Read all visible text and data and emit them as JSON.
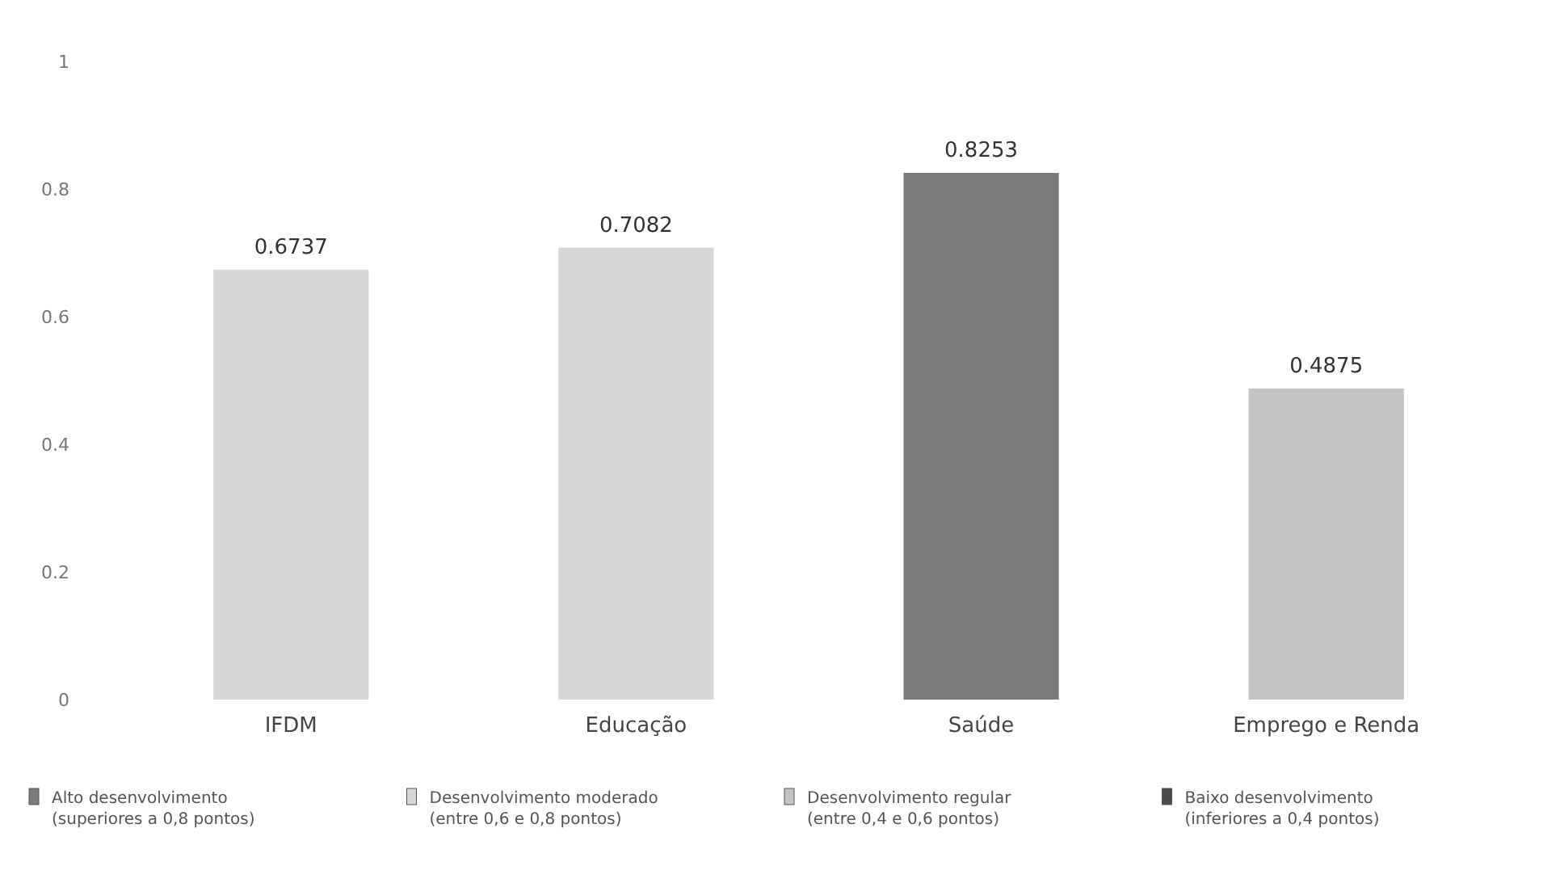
{
  "chart_data": {
    "type": "bar",
    "categories": [
      "IFDM",
      "Educação",
      "Saúde",
      "Emprego e Renda"
    ],
    "series": [
      {
        "name": "Alto desenvolvimento (superiores a 0,8 pontos)",
        "color": "#7a7a7a",
        "values": [
          null,
          null,
          0.8253,
          null
        ]
      },
      {
        "name": "Desenvolvimento moderado (entre 0,6 e 0,8 pontos)",
        "color": "#d6d6d6",
        "values": [
          0.6737,
          0.7082,
          null,
          null
        ]
      },
      {
        "name": "Desenvolvimento regular (entre 0,4 e 0,6 pontos)",
        "color": "#c4c4c4",
        "values": [
          null,
          null,
          null,
          0.4875
        ]
      },
      {
        "name": "Baixo desenvolvimento (inferiores a 0,4 pontos)",
        "color": "#4a4a4a",
        "values": [
          null,
          null,
          null,
          null
        ]
      }
    ],
    "ylim": [
      0,
      1
    ],
    "yticks": [
      {
        "value": 0,
        "label": "0"
      },
      {
        "value": 0.2,
        "label": "0.2"
      },
      {
        "value": 0.4,
        "label": "0.4"
      },
      {
        "value": 0.6,
        "label": "0.6"
      },
      {
        "value": 0.8,
        "label": "0.8"
      },
      {
        "value": 1,
        "label": "1"
      }
    ],
    "data_labels": true,
    "legend": "bottom",
    "grid": false
  }
}
